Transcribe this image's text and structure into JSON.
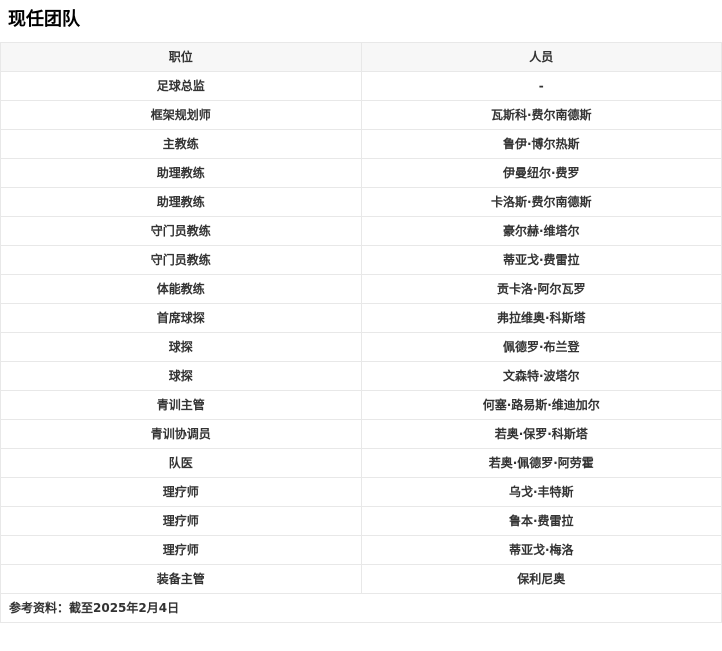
{
  "page": {
    "title": "现任团队"
  },
  "table": {
    "columns": [
      "职位",
      "人员"
    ],
    "rows": [
      {
        "position": "足球总监",
        "person": "-"
      },
      {
        "position": "框架规划师",
        "person": "瓦斯科·费尔南德斯"
      },
      {
        "position": "主教练",
        "person": "鲁伊·博尔热斯"
      },
      {
        "position": "助理教练",
        "person": "伊曼纽尔·费罗"
      },
      {
        "position": "助理教练",
        "person": "卡洛斯·费尔南德斯"
      },
      {
        "position": "守门员教练",
        "person": "豪尔赫·维塔尔"
      },
      {
        "position": "守门员教练",
        "person": "蒂亚戈·费雷拉"
      },
      {
        "position": "体能教练",
        "person": "贡卡洛·阿尔瓦罗"
      },
      {
        "position": "首席球探",
        "person": "弗拉维奥·科斯塔"
      },
      {
        "position": "球探",
        "person": "佩德罗·布兰登"
      },
      {
        "position": "球探",
        "person": "文森特·波塔尔"
      },
      {
        "position": "青训主管",
        "person": "何塞·路易斯·维迪加尔"
      },
      {
        "position": "青训协调员",
        "person": "若奥·保罗·科斯塔"
      },
      {
        "position": "队医",
        "person": "若奥·佩德罗·阿劳霍"
      },
      {
        "position": "理疗师",
        "person": "乌戈·丰特斯"
      },
      {
        "position": "理疗师",
        "person": "鲁本·费雷拉"
      },
      {
        "position": "理疗师",
        "person": "蒂亚戈·梅洛"
      },
      {
        "position": "装备主管",
        "person": "保利尼奥"
      }
    ],
    "footer": "参考资料：截至2025年2月4日"
  },
  "colors": {
    "header_bg": "#f7f7f7",
    "border": "#e8e8e8",
    "text": "#333333",
    "title_color": "#000000"
  }
}
